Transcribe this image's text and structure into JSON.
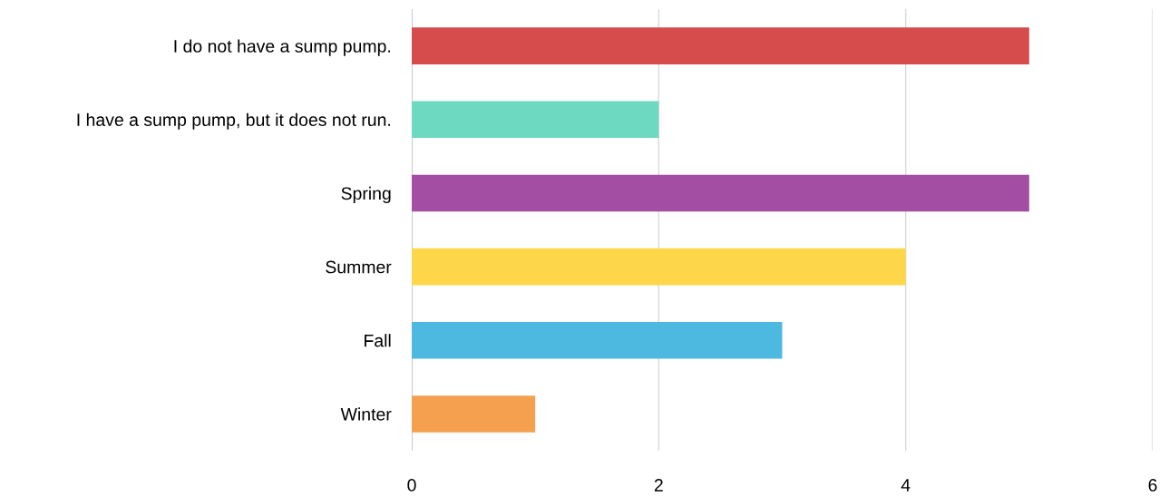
{
  "chart_data": {
    "type": "bar",
    "orientation": "horizontal",
    "categories": [
      "I do not have a sump pump.",
      "I have a sump pump, but it does not run.",
      "Spring",
      "Summer",
      "Fall",
      "Winter"
    ],
    "values": [
      5,
      2,
      5,
      4,
      3,
      1
    ],
    "colors": [
      "#d64b4b",
      "#6cd9c0",
      "#a34da3",
      "#fdd64a",
      "#4db8e0",
      "#f4a04f"
    ],
    "xlim": [
      0,
      6
    ],
    "xticks": [
      0,
      2,
      4,
      6
    ],
    "grid": "x",
    "legend": false
  }
}
